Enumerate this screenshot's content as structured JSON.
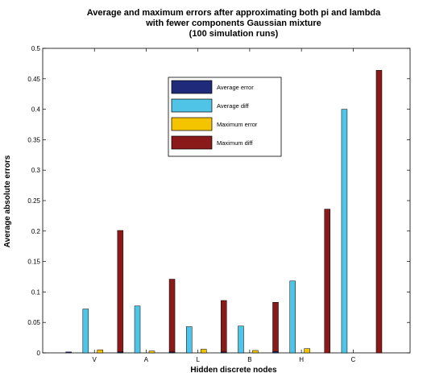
{
  "chart_data": {
    "type": "bar",
    "title": [
      "Average and maximum errors after approximating both pi and lambda",
      "with fewer components Gaussian mixture",
      "(100 simulation runs)"
    ],
    "xlabel": "Hidden discrete nodes",
    "ylabel": "Average absolute errors",
    "ylim": [
      0,
      0.5
    ],
    "yticks": [
      "0",
      "0.05",
      "0.1",
      "0.15",
      "0.2",
      "0.25",
      "0.3",
      "0.35",
      "0.4",
      "0.45",
      "0.5"
    ],
    "categories": [
      "V",
      "A",
      "L",
      "B",
      "H",
      "C"
    ],
    "series": [
      {
        "name": "Average error",
        "color": "#1f2a7a",
        "values": [
          0.0015,
          0.0015,
          0.0015,
          0.0015,
          0.002,
          0.0
        ]
      },
      {
        "name": "Average diff",
        "color": "#4fc4e6",
        "values": [
          0.072,
          0.077,
          0.043,
          0.044,
          0.118,
          0.4
        ]
      },
      {
        "name": "Maximum error",
        "color": "#f5c400",
        "values": [
          0.005,
          0.003,
          0.006,
          0.004,
          0.007,
          0.0
        ]
      },
      {
        "name": "Maximum diff",
        "color": "#8a1a1a",
        "values": [
          0.201,
          0.121,
          0.086,
          0.083,
          0.236,
          0.464
        ]
      }
    ],
    "legend": {
      "position": "top-center"
    },
    "grid": false
  }
}
